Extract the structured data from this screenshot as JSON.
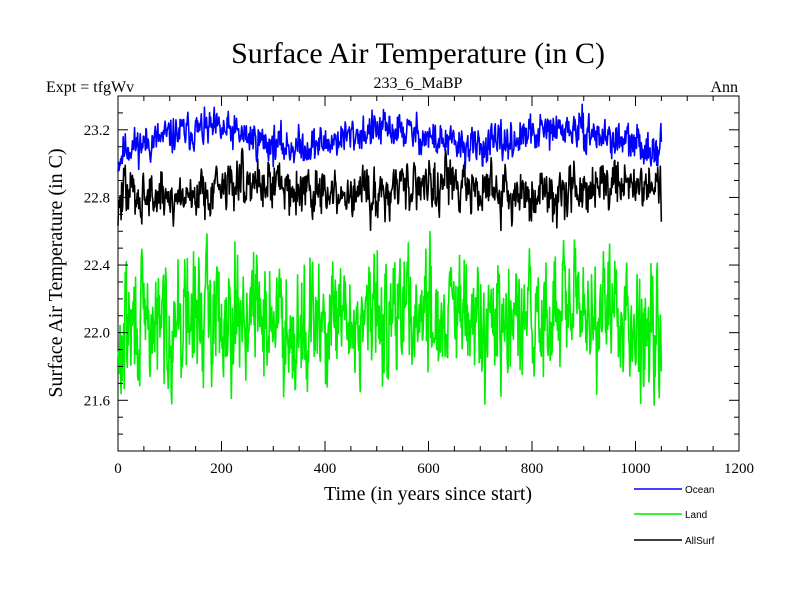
{
  "chart_data": {
    "type": "line",
    "title": "Surface Air Temperature (in C)",
    "subtitle_left": "Expt = tfgWv",
    "subtitle_center": "233_6_MaBP",
    "subtitle_right": "Ann",
    "xlabel": "Time (in years since start)",
    "ylabel": "Surface Air Temperature (in C)",
    "xlim": [
      0,
      1200
    ],
    "ylim": [
      21.3,
      23.4
    ],
    "xticks": [
      0,
      200,
      400,
      600,
      800,
      1000,
      1200
    ],
    "xtick_labels": [
      "0",
      "200",
      "400",
      "600",
      "800",
      "1000",
      "1200"
    ],
    "yticks": [
      21.6,
      22.0,
      22.4,
      22.8,
      23.2
    ],
    "ytick_labels": [
      "21.6",
      "22.0",
      "22.4",
      "22.8",
      "23.2"
    ],
    "x_start": 0,
    "x_end": 1050,
    "legend_position": "bottom-right",
    "series": [
      {
        "name": "Ocean",
        "label": "Ocean",
        "color": "#0000ff",
        "mean": 23.15,
        "amplitude": 0.05,
        "noise": 0.05,
        "seed": 11,
        "min": 22.95,
        "max": 23.37
      },
      {
        "name": "Land",
        "label": "Land",
        "color": "#00ee00",
        "mean": 22.08,
        "amplitude": 0.05,
        "noise": 0.17,
        "seed": 29,
        "min": 21.55,
        "max": 22.72
      },
      {
        "name": "AllSurf",
        "label": "AllSurf",
        "color": "#000000",
        "mean": 22.85,
        "amplitude": 0.05,
        "noise": 0.07,
        "seed": 47,
        "min": 22.55,
        "max": 23.13
      }
    ]
  }
}
